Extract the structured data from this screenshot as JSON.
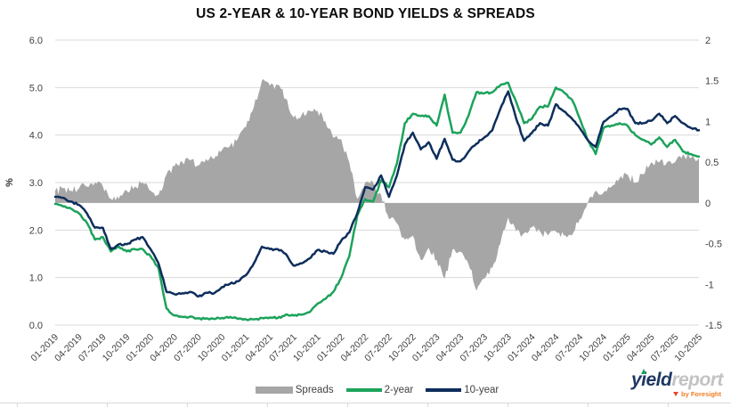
{
  "title": "US 2-YEAR & 10-YEAR BOND YIELDS & SPREADS",
  "branding": {
    "logo_primary": "yield",
    "logo_secondary": "report",
    "tagline": "by Foresight",
    "logo_primary_color": "#1F3864",
    "logo_secondary_color": "#C3C3C3",
    "tagline_color": "#F07E26",
    "accent_green": "#1CA35B",
    "accent_red": "#E8442E"
  },
  "chart_data": {
    "type": "line+area",
    "title": "US 2-YEAR & 10-YEAR BOND YIELDS & SPREADS",
    "grid": true,
    "grid_color": "#D9D9D9",
    "legend_position": "bottom",
    "left_axis": {
      "label": "%",
      "min": 0,
      "max": 6,
      "step": 1,
      "tick_labels": [
        "6.0",
        "5.0",
        "4.0",
        "3.0",
        "2.0",
        "1.0",
        "0.0"
      ]
    },
    "right_axis": {
      "label": "",
      "min": -1.5,
      "max": 2,
      "step": 0.5,
      "tick_labels": [
        "2",
        "1.5",
        "1",
        "0.5",
        "0",
        "-0.5",
        "-1",
        "-1.5"
      ]
    },
    "x_tick_labels": [
      "01-2019",
      "04-2019",
      "07-2019",
      "10-2019",
      "01-2020",
      "04-2020",
      "07-2020",
      "10-2020",
      "01-2021",
      "04-2021",
      "07-2021",
      "10-2021",
      "01-2022",
      "04-2022",
      "07-2022",
      "10-2022",
      "01-2023",
      "04-2023",
      "07-2023",
      "10-2023",
      "01-2024",
      "04-2024",
      "07-2024",
      "10-2024",
      "01-2025",
      "04-2025",
      "07-2025",
      "10-2025"
    ],
    "months": [
      "01-2019",
      "02-2019",
      "03-2019",
      "04-2019",
      "05-2019",
      "06-2019",
      "07-2019",
      "08-2019",
      "09-2019",
      "10-2019",
      "11-2019",
      "12-2019",
      "01-2020",
      "02-2020",
      "03-2020",
      "04-2020",
      "05-2020",
      "06-2020",
      "07-2020",
      "08-2020",
      "09-2020",
      "10-2020",
      "11-2020",
      "12-2020",
      "01-2021",
      "02-2021",
      "03-2021",
      "04-2021",
      "05-2021",
      "06-2021",
      "07-2021",
      "08-2021",
      "09-2021",
      "10-2021",
      "11-2021",
      "12-2021",
      "01-2022",
      "02-2022",
      "03-2022",
      "04-2022",
      "05-2022",
      "06-2022",
      "07-2022",
      "08-2022",
      "09-2022",
      "10-2022",
      "11-2022",
      "12-2022",
      "01-2023",
      "02-2023",
      "03-2023",
      "04-2023",
      "05-2023",
      "06-2023",
      "07-2023",
      "08-2023",
      "09-2023",
      "10-2023",
      "11-2023",
      "12-2023",
      "01-2024",
      "02-2024",
      "03-2024",
      "04-2024",
      "05-2024",
      "06-2024",
      "07-2024",
      "08-2024",
      "09-2024",
      "10-2024",
      "11-2024",
      "12-2024",
      "01-2025",
      "02-2025",
      "03-2025",
      "04-2025",
      "05-2025",
      "06-2025",
      "07-2025",
      "08-2025",
      "09-2025",
      "10-2025"
    ],
    "series": [
      {
        "name": "Spreads",
        "type": "area",
        "axis": "right",
        "color": "#A6A6A6",
        "values": [
          0.15,
          0.18,
          0.15,
          0.18,
          0.2,
          0.25,
          0.2,
          0.05,
          0.05,
          0.15,
          0.2,
          0.25,
          0.15,
          0.1,
          0.35,
          0.45,
          0.5,
          0.52,
          0.46,
          0.54,
          0.54,
          0.65,
          0.7,
          0.79,
          0.93,
          1.18,
          1.5,
          1.44,
          1.45,
          1.28,
          1.05,
          1.08,
          1.13,
          1.13,
          1.0,
          0.8,
          0.78,
          0.5,
          0.05,
          0.25,
          0.25,
          0.1,
          -0.2,
          -0.25,
          -0.45,
          -0.4,
          -0.7,
          -0.55,
          -0.7,
          -0.93,
          -0.57,
          -0.6,
          -0.75,
          -1.08,
          -0.93,
          -0.8,
          -0.5,
          -0.18,
          -0.35,
          -0.37,
          -0.3,
          -0.35,
          -0.4,
          -0.35,
          -0.4,
          -0.4,
          -0.2,
          0.0,
          0.15,
          0.13,
          0.2,
          0.3,
          0.35,
          0.25,
          0.35,
          0.5,
          0.5,
          0.5,
          0.5,
          0.6,
          0.55,
          0.55
        ]
      },
      {
        "name": "2-year",
        "type": "line",
        "axis": "left",
        "color": "#1CA35B",
        "values": [
          2.55,
          2.5,
          2.45,
          2.35,
          2.15,
          1.8,
          1.85,
          1.55,
          1.65,
          1.55,
          1.6,
          1.6,
          1.45,
          1.2,
          0.35,
          0.2,
          0.17,
          0.18,
          0.14,
          0.14,
          0.13,
          0.15,
          0.17,
          0.13,
          0.12,
          0.12,
          0.15,
          0.16,
          0.15,
          0.22,
          0.2,
          0.22,
          0.27,
          0.45,
          0.55,
          0.7,
          1.0,
          1.45,
          2.3,
          2.65,
          2.6,
          3.05,
          2.9,
          3.4,
          4.25,
          4.45,
          4.4,
          4.4,
          4.2,
          4.85,
          4.05,
          4.05,
          4.4,
          4.9,
          4.88,
          4.9,
          5.05,
          5.1,
          4.7,
          4.25,
          4.35,
          4.6,
          4.6,
          5.0,
          4.9,
          4.75,
          4.35,
          3.9,
          3.6,
          4.15,
          4.2,
          4.25,
          4.2,
          4.0,
          3.9,
          3.8,
          3.95,
          3.75,
          3.9,
          3.65,
          3.6,
          3.55
        ]
      },
      {
        "name": "10-year",
        "type": "line",
        "axis": "left",
        "color": "#0E2E5C",
        "values": [
          2.7,
          2.68,
          2.6,
          2.53,
          2.35,
          2.05,
          2.05,
          1.6,
          1.7,
          1.7,
          1.8,
          1.85,
          1.6,
          1.3,
          0.7,
          0.65,
          0.67,
          0.7,
          0.6,
          0.68,
          0.67,
          0.8,
          0.87,
          0.92,
          1.05,
          1.3,
          1.65,
          1.6,
          1.6,
          1.5,
          1.25,
          1.3,
          1.4,
          1.58,
          1.55,
          1.5,
          1.78,
          1.95,
          2.35,
          2.9,
          2.85,
          3.15,
          2.7,
          3.15,
          3.8,
          4.05,
          3.7,
          3.85,
          3.5,
          3.92,
          3.48,
          3.45,
          3.65,
          3.82,
          3.95,
          4.1,
          4.55,
          4.92,
          4.35,
          3.88,
          4.05,
          4.25,
          4.2,
          4.65,
          4.5,
          4.35,
          4.15,
          3.9,
          3.75,
          4.28,
          4.4,
          4.55,
          4.55,
          4.25,
          4.25,
          4.3,
          4.45,
          4.25,
          4.4,
          4.25,
          4.15,
          4.1
        ]
      }
    ]
  }
}
